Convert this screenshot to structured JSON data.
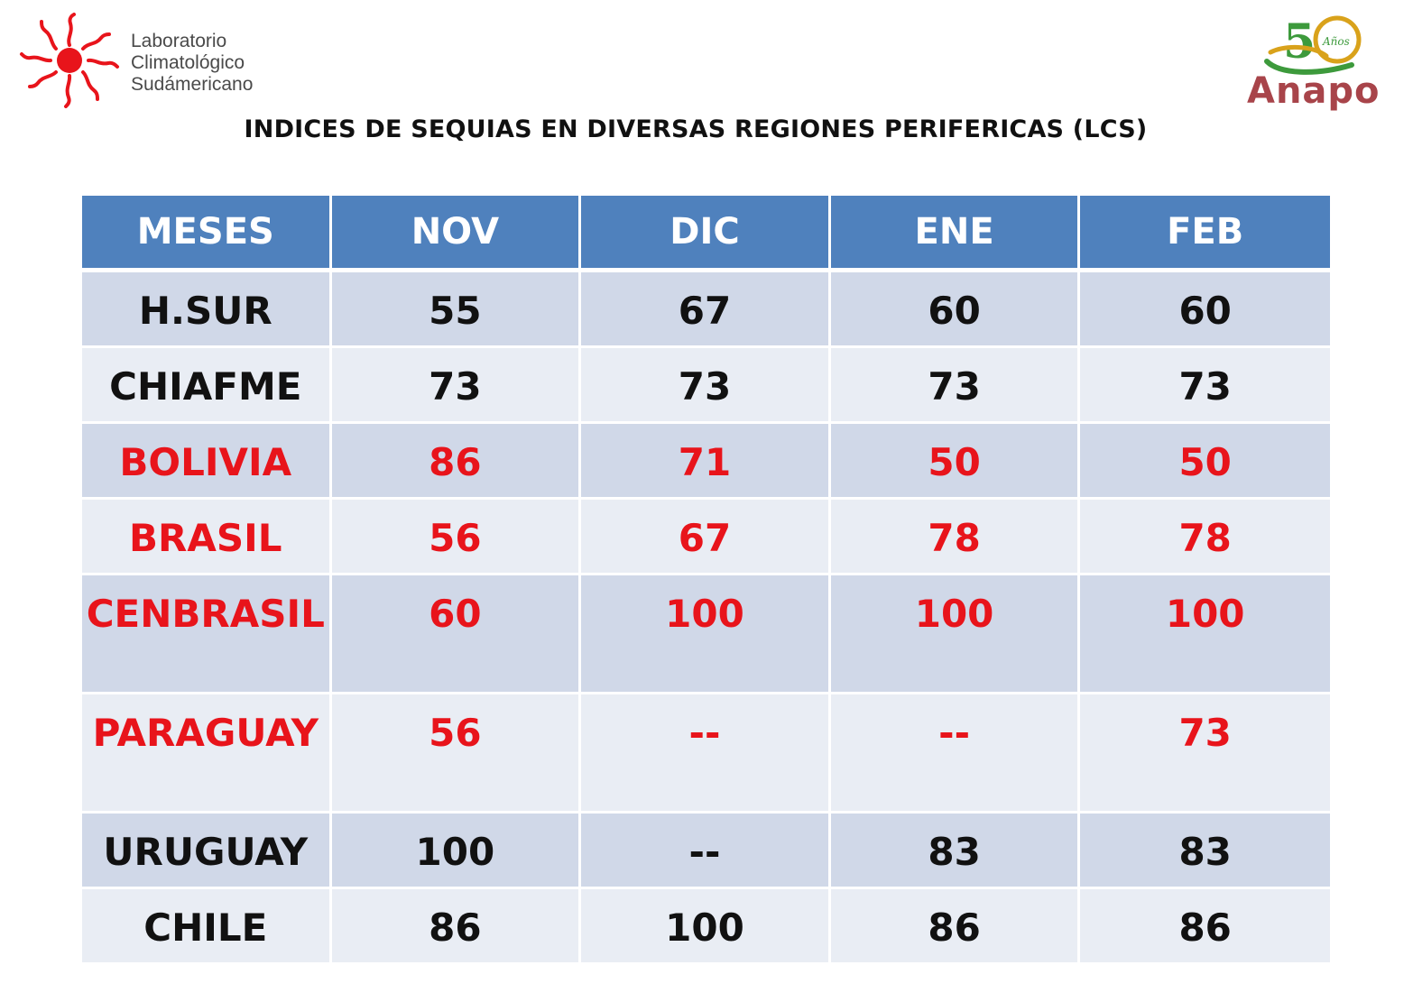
{
  "header": {
    "lab_logo": {
      "lines": [
        "Laboratorio",
        "Climatológico",
        "Sudámericano"
      ],
      "color": "#e8141b"
    },
    "anapo_logo": {
      "word": "Anapo",
      "anniversary_number": "50",
      "anniversary_text": "Años",
      "colors": {
        "green": "#3d9a3c",
        "gold": "#d9a21b",
        "brand": "#a8444a"
      }
    }
  },
  "document": {
    "title": "INDICES DE SEQUIAS EN DIVERSAS REGIONES PERIFERICAS (LCS)"
  },
  "table": {
    "header_color": "#4f81bd",
    "columns": [
      "MESES",
      "NOV",
      "DIC",
      "ENE",
      "FEB"
    ],
    "rows": [
      {
        "region": "H.SUR",
        "values": [
          "55",
          "67",
          "60",
          "60"
        ],
        "highlight": false
      },
      {
        "region": "CHIAFME",
        "values": [
          "73",
          "73",
          "73",
          "73"
        ],
        "highlight": false
      },
      {
        "region": "BOLIVIA",
        "values": [
          "86",
          "71",
          "50",
          "50"
        ],
        "highlight": true
      },
      {
        "region": "BRASIL",
        "values": [
          "56",
          "67",
          "78",
          "78"
        ],
        "highlight": true
      },
      {
        "region": "CENBRASIL",
        "values": [
          "60",
          "100",
          "100",
          "100"
        ],
        "highlight": true
      },
      {
        "region": "PARAGUAY",
        "values": [
          "56",
          "--",
          "--",
          "73"
        ],
        "highlight": true
      },
      {
        "region": "URUGUAY",
        "values": [
          "100",
          "--",
          "83",
          "83"
        ],
        "highlight": false
      },
      {
        "region": "CHILE",
        "values": [
          "86",
          "100",
          "86",
          "86"
        ],
        "highlight": false
      }
    ],
    "highlight_color": "#e8141b"
  }
}
